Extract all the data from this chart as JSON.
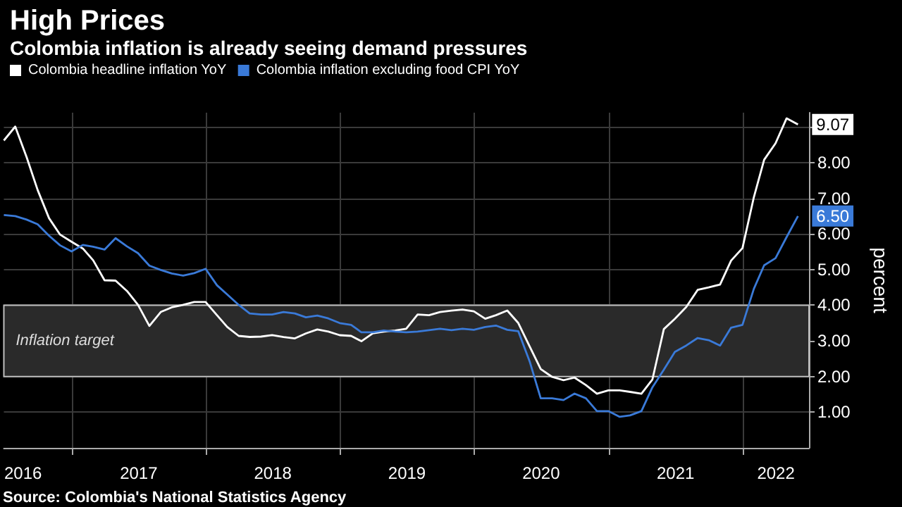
{
  "chart_data": {
    "type": "line",
    "title": "High Prices",
    "subtitle": "Colombia inflation is already seeing demand pressures",
    "ylabel": "percent",
    "legend": "top left",
    "grid": true,
    "x": [
      "2016-06-30",
      "2016-07-31",
      "2016-08-31",
      "2016-09-30",
      "2016-10-31",
      "2016-11-30",
      "2016-12-31",
      "2017-01-31",
      "2017-02-28",
      "2017-03-31",
      "2017-04-30",
      "2017-05-31",
      "2017-06-30",
      "2017-07-31",
      "2017-08-31",
      "2017-09-30",
      "2017-10-31",
      "2017-11-30",
      "2017-12-31",
      "2018-01-31",
      "2018-02-28",
      "2018-03-31",
      "2018-04-30",
      "2018-05-31",
      "2018-06-30",
      "2018-07-31",
      "2018-08-31",
      "2018-09-30",
      "2018-10-31",
      "2018-11-30",
      "2018-12-31",
      "2019-01-31",
      "2019-02-28",
      "2019-03-31",
      "2019-04-30",
      "2019-05-31",
      "2019-06-30",
      "2019-07-31",
      "2019-08-31",
      "2019-09-30",
      "2019-10-31",
      "2019-11-30",
      "2019-12-31",
      "2020-01-31",
      "2020-02-29",
      "2020-03-31",
      "2020-04-30",
      "2020-05-31",
      "2020-06-30",
      "2020-07-31",
      "2020-08-31",
      "2020-09-30",
      "2020-10-31",
      "2020-11-30",
      "2020-12-31",
      "2021-01-31",
      "2021-02-28",
      "2021-03-31",
      "2021-04-30",
      "2021-05-31",
      "2021-06-30",
      "2021-07-31",
      "2021-08-31",
      "2021-09-30",
      "2021-10-31",
      "2021-11-30",
      "2021-12-31",
      "2022-01-31",
      "2022-02-28",
      "2022-03-31",
      "2022-04-30",
      "2022-05-31"
    ],
    "series": [
      {
        "name": "Colombia headline inflation YoY",
        "color": "#ffffff",
        "values": [
          8.62,
          9.01,
          8.15,
          7.23,
          6.44,
          5.98,
          5.78,
          5.59,
          5.26,
          4.7,
          4.69,
          4.4,
          4.01,
          3.42,
          3.81,
          3.94,
          4.01,
          4.09,
          4.09,
          3.72,
          3.39,
          3.14,
          3.11,
          3.12,
          3.16,
          3.11,
          3.07,
          3.21,
          3.32,
          3.26,
          3.16,
          3.14,
          2.99,
          3.21,
          3.26,
          3.29,
          3.34,
          3.74,
          3.72,
          3.81,
          3.85,
          3.88,
          3.83,
          3.62,
          3.72,
          3.85,
          3.5,
          2.84,
          2.21,
          1.99,
          1.9,
          1.97,
          1.76,
          1.52,
          1.61,
          1.61,
          1.57,
          1.52,
          1.92,
          3.33,
          3.62,
          3.95,
          4.43,
          4.5,
          4.58,
          5.25,
          5.6,
          7.03,
          8.08,
          8.54,
          9.24,
          9.07
        ],
        "value_labels": [
          null,
          null,
          null,
          null,
          null,
          null,
          null,
          null,
          null,
          null,
          null,
          null,
          null,
          null,
          null,
          null,
          null,
          null,
          null,
          null,
          null,
          null,
          null,
          null,
          null,
          null,
          null,
          null,
          null,
          null,
          null,
          null,
          null,
          null,
          null,
          null,
          null,
          null,
          null,
          null,
          null,
          null,
          null,
          null,
          null,
          null,
          null,
          null,
          null,
          null,
          null,
          null,
          null,
          null,
          null,
          null,
          null,
          null,
          null,
          null,
          null,
          null,
          null,
          null,
          null,
          null,
          null,
          null,
          null,
          null,
          null,
          "9.07"
        ]
      },
      {
        "name": "Colombia inflation excluding food CPI YoY",
        "color": "#3a7ad8",
        "values": [
          6.53,
          6.5,
          6.4,
          6.27,
          5.95,
          5.68,
          5.51,
          5.69,
          5.64,
          5.56,
          5.88,
          5.65,
          5.46,
          5.11,
          4.99,
          4.89,
          4.83,
          4.9,
          5.02,
          4.56,
          4.3,
          4.01,
          3.77,
          3.74,
          3.74,
          3.81,
          3.77,
          3.66,
          3.71,
          3.63,
          3.5,
          3.45,
          3.24,
          3.24,
          3.29,
          3.26,
          3.24,
          3.26,
          3.3,
          3.34,
          3.3,
          3.34,
          3.31,
          3.39,
          3.43,
          3.31,
          3.27,
          2.42,
          1.39,
          1.39,
          1.34,
          1.52,
          1.39,
          1.03,
          1.03,
          0.87,
          0.91,
          1.03,
          1.7,
          2.19,
          2.69,
          2.87,
          3.08,
          3.02,
          2.87,
          3.37,
          3.45,
          4.46,
          5.12,
          5.32,
          5.91,
          6.5
        ],
        "value_labels": [
          null,
          null,
          null,
          null,
          null,
          null,
          null,
          null,
          null,
          null,
          null,
          null,
          null,
          null,
          null,
          null,
          null,
          null,
          null,
          null,
          null,
          null,
          null,
          null,
          null,
          null,
          null,
          null,
          null,
          null,
          null,
          null,
          null,
          null,
          null,
          null,
          null,
          null,
          null,
          null,
          null,
          null,
          null,
          null,
          null,
          null,
          null,
          null,
          null,
          null,
          null,
          null,
          null,
          null,
          null,
          null,
          null,
          null,
          null,
          null,
          null,
          null,
          null,
          null,
          null,
          null,
          null,
          null,
          null,
          null,
          null,
          "6.50"
        ]
      }
    ],
    "xlim": [
      "2016-06-30",
      "2022-06-30"
    ],
    "xticks": [
      {
        "value": "2016-07-01",
        "label": "2016"
      },
      {
        "value": "2017-01-01",
        "label": null
      },
      {
        "value": "2017-07-02",
        "label": "2017"
      },
      {
        "value": "2018-01-01",
        "label": null
      },
      {
        "value": "2018-07-02",
        "label": "2018"
      },
      {
        "value": "2019-01-01",
        "label": null
      },
      {
        "value": "2019-07-02",
        "label": "2019"
      },
      {
        "value": "2020-01-01",
        "label": null
      },
      {
        "value": "2020-07-01",
        "label": "2020"
      },
      {
        "value": "2021-01-01",
        "label": null
      },
      {
        "value": "2021-07-02",
        "label": "2021"
      },
      {
        "value": "2022-01-01",
        "label": null
      },
      {
        "value": "2022-04-01",
        "label": "2022"
      }
    ],
    "ylim": [
      0,
      9.4
    ],
    "yticks": [
      {
        "value": 1,
        "label": "1.00"
      },
      {
        "value": 2,
        "label": "2.00"
      },
      {
        "value": 3,
        "label": "3.00"
      },
      {
        "value": 4,
        "label": "4.00"
      },
      {
        "value": 5,
        "label": "5.00"
      },
      {
        "value": 6,
        "label": "6.00"
      },
      {
        "value": 7,
        "label": "7.00"
      },
      {
        "value": 8,
        "label": "8.00"
      },
      {
        "value": 9,
        "label": null
      }
    ],
    "bands": [
      {
        "axis": "y",
        "from": 2,
        "to": 4,
        "label": "Inflation target",
        "color": "#2a2a2a"
      }
    ],
    "annotations": [
      "Source: Colombia's National Statistics Agency"
    ]
  }
}
